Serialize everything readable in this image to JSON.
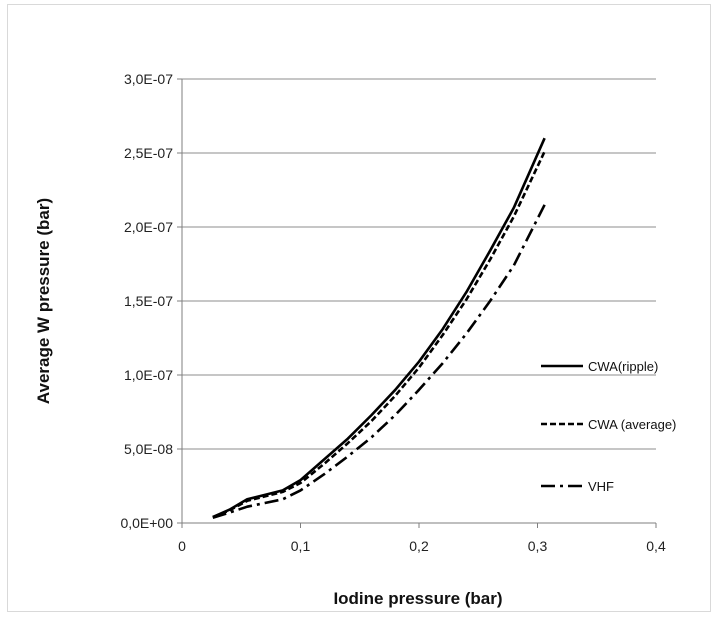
{
  "chart_data": {
    "type": "line",
    "title": "",
    "xlabel": "Iodine pressure (bar)",
    "ylabel": "Average W pressure (bar)",
    "xlim": [
      0,
      0.4
    ],
    "ylim": [
      0,
      3e-07
    ],
    "x_ticks": [
      {
        "value": 0,
        "label": "0"
      },
      {
        "value": 0.1,
        "label": "0,1"
      },
      {
        "value": 0.2,
        "label": "0,2"
      },
      {
        "value": 0.3,
        "label": "0,3"
      },
      {
        "value": 0.4,
        "label": "0,4"
      }
    ],
    "y_ticks": [
      {
        "value": 0,
        "label": "0,0E+00"
      },
      {
        "value": 5e-08,
        "label": "5,0E-08"
      },
      {
        "value": 1e-07,
        "label": "1,0E-07"
      },
      {
        "value": 1.5e-07,
        "label": "1,5E-07"
      },
      {
        "value": 2e-07,
        "label": "2,0E-07"
      },
      {
        "value": 2.5e-07,
        "label": "2,5E-07"
      },
      {
        "value": 3e-07,
        "label": "3,0E-07"
      }
    ],
    "grid": "horizontal",
    "legend_position": "right",
    "series": [
      {
        "name": "CWA(ripple)",
        "style": "solid",
        "color": "#000000",
        "points": [
          [
            0.026,
            4e-09
          ],
          [
            0.04,
            9e-09
          ],
          [
            0.055,
            1.6e-08
          ],
          [
            0.07,
            1.9e-08
          ],
          [
            0.085,
            2.2e-08
          ],
          [
            0.1,
            2.9e-08
          ],
          [
            0.12,
            4.3e-08
          ],
          [
            0.14,
            5.7e-08
          ],
          [
            0.16,
            7.3e-08
          ],
          [
            0.18,
            9e-08
          ],
          [
            0.2,
            1.09e-07
          ],
          [
            0.22,
            1.31e-07
          ],
          [
            0.24,
            1.56e-07
          ],
          [
            0.26,
            1.84e-07
          ],
          [
            0.28,
            2.13e-07
          ],
          [
            0.306,
            2.6e-07
          ]
        ]
      },
      {
        "name": "CWA (average)",
        "style": "dashed",
        "color": "#000000",
        "points": [
          [
            0.026,
            4e-09
          ],
          [
            0.04,
            8.5e-09
          ],
          [
            0.055,
            1.5e-08
          ],
          [
            0.07,
            1.8e-08
          ],
          [
            0.085,
            2.1e-08
          ],
          [
            0.1,
            2.7e-08
          ],
          [
            0.12,
            4e-08
          ],
          [
            0.14,
            5.4e-08
          ],
          [
            0.16,
            6.9e-08
          ],
          [
            0.18,
            8.6e-08
          ],
          [
            0.2,
            1.05e-07
          ],
          [
            0.22,
            1.27e-07
          ],
          [
            0.24,
            1.51e-07
          ],
          [
            0.26,
            1.78e-07
          ],
          [
            0.28,
            2.07e-07
          ],
          [
            0.306,
            2.51e-07
          ]
        ]
      },
      {
        "name": "VHF",
        "style": "dashdot",
        "color": "#000000",
        "points": [
          [
            0.026,
            3.5e-09
          ],
          [
            0.04,
            7e-09
          ],
          [
            0.055,
            1.1e-08
          ],
          [
            0.07,
            1.35e-08
          ],
          [
            0.085,
            1.6e-08
          ],
          [
            0.1,
            2.2e-08
          ],
          [
            0.12,
            3.3e-08
          ],
          [
            0.14,
            4.5e-08
          ],
          [
            0.16,
            5.8e-08
          ],
          [
            0.18,
            7.3e-08
          ],
          [
            0.2,
            9e-08
          ],
          [
            0.22,
            1.08e-07
          ],
          [
            0.24,
            1.28e-07
          ],
          [
            0.26,
            1.5e-07
          ],
          [
            0.28,
            1.74e-07
          ],
          [
            0.306,
            2.15e-07
          ]
        ]
      }
    ]
  }
}
